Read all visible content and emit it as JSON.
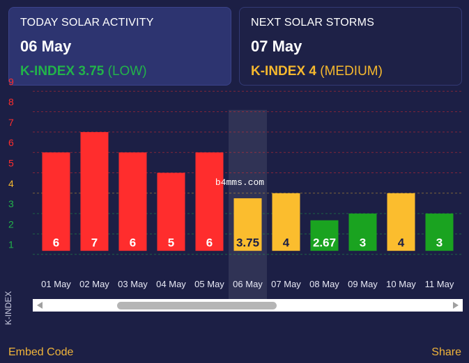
{
  "today": {
    "heading": "TODAY SOLAR ACTIVITY",
    "date": "06 May",
    "kindex_label": "K-INDEX 3.75",
    "level": "(LOW)",
    "color": "#22b34a"
  },
  "next": {
    "heading": "NEXT SOLAR STORMS",
    "date": "07 May",
    "kindex_label": "K-INDEX 4",
    "level": "(MEDIUM)",
    "color": "#f5b82e"
  },
  "chart_data": {
    "type": "bar",
    "ylabel": "K-INDEX",
    "ylim": [
      0,
      9
    ],
    "yticks": [
      "1",
      "2",
      "3",
      "4",
      "5",
      "6",
      "7",
      "8",
      "9"
    ],
    "ytick_colors": [
      "#22b34a",
      "#22b34a",
      "#22b34a",
      "#f5b82e",
      "#ff2d2d",
      "#ff2d2d",
      "#ff2d2d",
      "#ff2d2d",
      "#ff2d2d"
    ],
    "categories": [
      "01 May",
      "02 May",
      "03 May",
      "04 May",
      "05 May",
      "06 May",
      "07 May",
      "08 May",
      "09 May",
      "10 May",
      "11 May"
    ],
    "values": [
      6,
      7,
      6,
      5,
      6,
      3.75,
      4,
      2.67,
      3,
      4,
      3
    ],
    "data_labels": [
      "6",
      "7",
      "6",
      "5",
      "6",
      "3.75",
      "4",
      "2.67",
      "3",
      "4",
      "3"
    ],
    "bar_colors": [
      "#ff2d2d",
      "#ff2d2d",
      "#ff2d2d",
      "#ff2d2d",
      "#ff2d2d",
      "#fbbd2e",
      "#fbbd2e",
      "#1aa320",
      "#1aa320",
      "#fbbd2e",
      "#1aa320"
    ],
    "highlighted_category": "06 May",
    "watermark": "b4mms.com"
  },
  "footer": {
    "embed_label": "Embed Code",
    "share_label": "Share"
  }
}
